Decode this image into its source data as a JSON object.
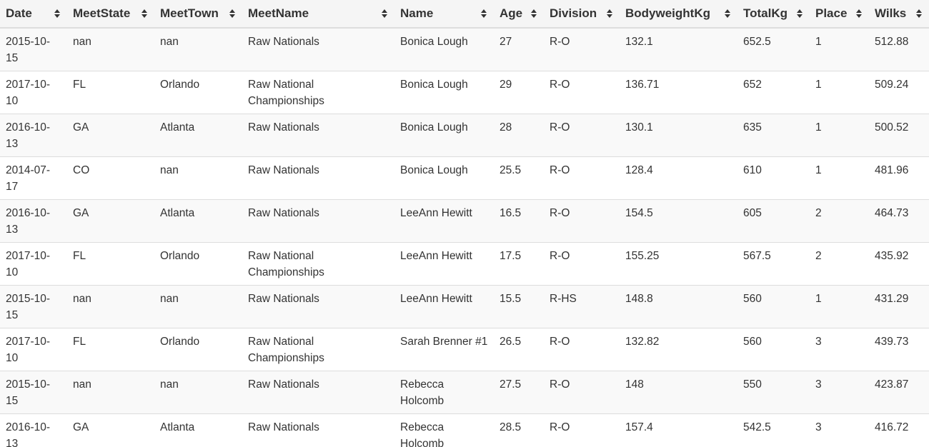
{
  "table": {
    "columns": [
      "Date",
      "MeetState",
      "MeetTown",
      "MeetName",
      "Name",
      "Age",
      "Division",
      "BodyweightKg",
      "TotalKg",
      "Place",
      "Wilks"
    ],
    "sort_icon": "sort-both-icon",
    "rows": [
      [
        "2015-10-15",
        "nan",
        "nan",
        "Raw Nationals",
        "Bonica Lough",
        "27",
        "R-O",
        "132.1",
        "652.5",
        "1",
        "512.88"
      ],
      [
        "2017-10-10",
        "FL",
        "Orlando",
        "Raw National Championships",
        "Bonica Lough",
        "29",
        "R-O",
        "136.71",
        "652",
        "1",
        "509.24"
      ],
      [
        "2016-10-13",
        "GA",
        "Atlanta",
        "Raw Nationals",
        "Bonica Lough",
        "28",
        "R-O",
        "130.1",
        "635",
        "1",
        "500.52"
      ],
      [
        "2014-07-17",
        "CO",
        "nan",
        "Raw Nationals",
        "Bonica Lough",
        "25.5",
        "R-O",
        "128.4",
        "610",
        "1",
        "481.96"
      ],
      [
        "2016-10-13",
        "GA",
        "Atlanta",
        "Raw Nationals",
        "LeeAnn Hewitt",
        "16.5",
        "R-O",
        "154.5",
        "605",
        "2",
        "464.73"
      ],
      [
        "2017-10-10",
        "FL",
        "Orlando",
        "Raw National Championships",
        "LeeAnn Hewitt",
        "17.5",
        "R-O",
        "155.25",
        "567.5",
        "2",
        "435.92"
      ],
      [
        "2015-10-15",
        "nan",
        "nan",
        "Raw Nationals",
        "LeeAnn Hewitt",
        "15.5",
        "R-HS",
        "148.8",
        "560",
        "1",
        "431.29"
      ],
      [
        "2017-10-10",
        "FL",
        "Orlando",
        "Raw National Championships",
        "Sarah Brenner #1",
        "26.5",
        "R-O",
        "132.82",
        "560",
        "3",
        "439.73"
      ],
      [
        "2015-10-15",
        "nan",
        "nan",
        "Raw Nationals",
        "Rebecca Holcomb",
        "27.5",
        "R-O",
        "148",
        "550",
        "3",
        "423.87"
      ],
      [
        "2016-10-13",
        "GA",
        "Atlanta",
        "Raw Nationals",
        "Rebecca Holcomb",
        "28.5",
        "R-O",
        "157.4",
        "542.5",
        "3",
        "416.72"
      ]
    ]
  }
}
